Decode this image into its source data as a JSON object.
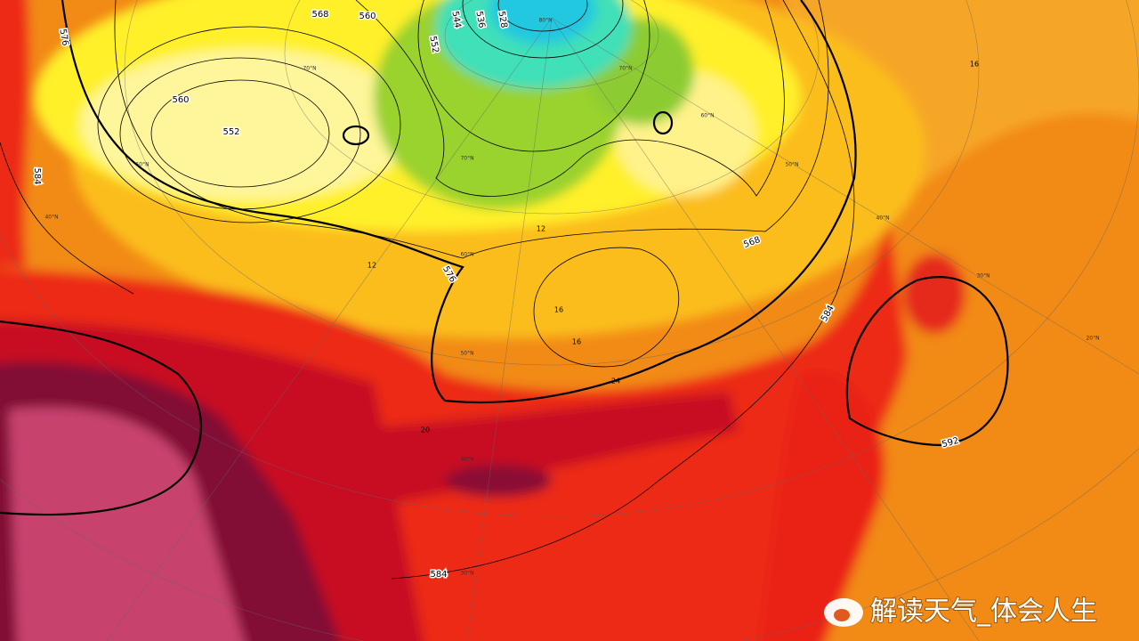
{
  "map": {
    "isoline_labels": [
      "568",
      "560",
      "552",
      "544",
      "536",
      "528",
      "576",
      "584",
      "560",
      "552",
      "568",
      "576",
      "584",
      "592",
      "584"
    ],
    "temperature_labels": [
      "16",
      "12",
      "12",
      "16",
      "20",
      "24",
      "16"
    ],
    "latitude_labels": [
      "80°N",
      "70°N",
      "60°N",
      "50°N",
      "40°N",
      "30°N",
      "20°N",
      "70°N",
      "60°N",
      "50°N",
      "40°N",
      "30°N",
      "50°N",
      "40°N",
      "70°N"
    ],
    "watermark": "解读天气_体会人生"
  }
}
